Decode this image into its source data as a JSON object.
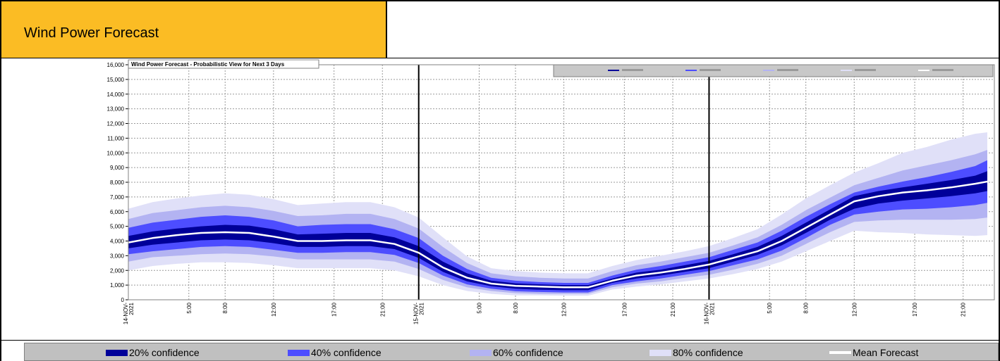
{
  "header": {
    "title": "Wind Power Forecast"
  },
  "legend": {
    "items": [
      {
        "label": "20% confidence",
        "color": "#000099"
      },
      {
        "label": "40% confidence",
        "color": "#4d4dff"
      },
      {
        "label": "60% confidence",
        "color": "#b3b3f2"
      },
      {
        "label": "80% confidence",
        "color": "#e0e0f8"
      },
      {
        "label": "Mean Forecast",
        "color": "#ffffff"
      }
    ]
  },
  "chart_data": {
    "type": "area",
    "title": "Wind Power Forecast - Probabilistic View for Next 3 Days",
    "xlabel": "",
    "ylabel": "",
    "ylim": [
      0,
      16000
    ],
    "yticks": [
      0,
      1000,
      2000,
      3000,
      4000,
      5000,
      6000,
      7000,
      8000,
      9000,
      10000,
      11000,
      12000,
      13000,
      14000,
      15000,
      16000
    ],
    "ytick_labels": [
      "0",
      "1,000",
      "2,000",
      "3,000",
      "4,000",
      "5,000",
      "6,000",
      "7,000",
      "8,000",
      "9,000",
      "10,000",
      "11,000",
      "12,000",
      "13,000",
      "14,000",
      "15,000",
      "16,000"
    ],
    "xlim": [
      0,
      71
    ],
    "xticks": [
      {
        "h": 0,
        "label": "14-NOV-2021",
        "day": true
      },
      {
        "h": 5,
        "label": "5:00"
      },
      {
        "h": 8,
        "label": "8:00"
      },
      {
        "h": 12,
        "label": "12:00"
      },
      {
        "h": 17,
        "label": "17:00"
      },
      {
        "h": 21,
        "label": "21:00"
      },
      {
        "h": 24,
        "label": "15-NOV-2021",
        "day": true
      },
      {
        "h": 29,
        "label": "5:00"
      },
      {
        "h": 32,
        "label": "8:00"
      },
      {
        "h": 36,
        "label": "12:00"
      },
      {
        "h": 41,
        "label": "17:00"
      },
      {
        "h": 45,
        "label": "21:00"
      },
      {
        "h": 48,
        "label": "16-NOV-2021",
        "day": true
      },
      {
        "h": 53,
        "label": "5:00"
      },
      {
        "h": 56,
        "label": "8:00"
      },
      {
        "h": 60,
        "label": "12:00"
      },
      {
        "h": 65,
        "label": "17:00"
      },
      {
        "h": 69,
        "label": "21:00"
      }
    ],
    "grid": true,
    "legend_position": "bottom",
    "x": [
      0,
      2,
      4,
      6,
      8,
      10,
      12,
      14,
      16,
      18,
      20,
      22,
      24,
      26,
      28,
      30,
      32,
      34,
      36,
      38,
      40,
      42,
      44,
      46,
      48,
      50,
      52,
      54,
      56,
      58,
      60,
      62,
      64,
      66,
      68,
      70,
      71
    ],
    "series": [
      {
        "name": "Mean Forecast",
        "values": [
          3900,
          4200,
          4400,
          4550,
          4600,
          4550,
          4300,
          4000,
          4000,
          4050,
          4050,
          3800,
          3200,
          2200,
          1500,
          1100,
          950,
          900,
          850,
          850,
          1300,
          1650,
          1850,
          2100,
          2400,
          2850,
          3300,
          4000,
          4900,
          5800,
          6700,
          7050,
          7300,
          7450,
          7650,
          7900,
          8050
        ]
      }
    ],
    "bands": [
      {
        "name": "80% confidence",
        "lower": [
          2000,
          2300,
          2450,
          2550,
          2550,
          2500,
          2350,
          2150,
          2150,
          2150,
          2150,
          2000,
          1600,
          1000,
          600,
          400,
          300,
          300,
          280,
          280,
          700,
          900,
          1050,
          1250,
          1450,
          1750,
          2100,
          2600,
          3300,
          4000,
          4700,
          4600,
          4550,
          4450,
          4400,
          4350,
          4400
        ],
        "upper": [
          6200,
          6650,
          6900,
          7100,
          7250,
          7150,
          6850,
          6450,
          6550,
          6650,
          6650,
          6300,
          5600,
          4250,
          2950,
          2150,
          1950,
          1850,
          1800,
          1800,
          2300,
          2700,
          3000,
          3300,
          3650,
          4200,
          4800,
          5800,
          6900,
          7800,
          8650,
          9300,
          10000,
          10400,
          10900,
          11300,
          11400
        ]
      },
      {
        "name": "60% confidence",
        "lower": [
          2600,
          2900,
          3000,
          3100,
          3150,
          3100,
          2950,
          2750,
          2750,
          2750,
          2750,
          2600,
          2100,
          1350,
          850,
          600,
          450,
          400,
          400,
          400,
          850,
          1100,
          1250,
          1500,
          1700,
          2050,
          2450,
          3000,
          3800,
          4600,
          5300,
          5400,
          5450,
          5450,
          5450,
          5500,
          5600
        ],
        "upper": [
          5500,
          5900,
          6100,
          6300,
          6400,
          6300,
          6050,
          5700,
          5750,
          5850,
          5850,
          5500,
          4850,
          3600,
          2500,
          1800,
          1600,
          1500,
          1450,
          1450,
          1950,
          2350,
          2600,
          2900,
          3200,
          3700,
          4250,
          5100,
          6100,
          6950,
          7800,
          8300,
          8800,
          9150,
          9500,
          9900,
          10200
        ]
      },
      {
        "name": "40% confidence",
        "lower": [
          3100,
          3300,
          3450,
          3600,
          3650,
          3600,
          3400,
          3200,
          3200,
          3250,
          3250,
          3050,
          2500,
          1650,
          1050,
          750,
          580,
          530,
          500,
          500,
          1000,
          1250,
          1450,
          1700,
          1950,
          2350,
          2750,
          3350,
          4200,
          5100,
          5800,
          6000,
          6150,
          6200,
          6300,
          6450,
          6600
        ],
        "upper": [
          4900,
          5250,
          5450,
          5650,
          5750,
          5650,
          5400,
          5000,
          5100,
          5150,
          5150,
          4800,
          4200,
          3000,
          2100,
          1500,
          1300,
          1200,
          1150,
          1150,
          1650,
          2050,
          2300,
          2600,
          2900,
          3400,
          3900,
          4700,
          5650,
          6500,
          7300,
          7700,
          8050,
          8350,
          8700,
          9100,
          9500
        ]
      },
      {
        "name": "20% confidence",
        "lower": [
          3500,
          3750,
          3900,
          4050,
          4100,
          4050,
          3850,
          3600,
          3600,
          3650,
          3650,
          3450,
          2850,
          1900,
          1250,
          920,
          750,
          680,
          650,
          650,
          1150,
          1450,
          1650,
          1900,
          2150,
          2600,
          3050,
          3700,
          4550,
          5450,
          6200,
          6550,
          6750,
          6900,
          7050,
          7250,
          7400
        ],
        "upper": [
          4350,
          4650,
          4850,
          5000,
          5100,
          5050,
          4800,
          4450,
          4500,
          4550,
          4550,
          4250,
          3650,
          2600,
          1800,
          1300,
          1120,
          1050,
          1000,
          1000,
          1450,
          1850,
          2050,
          2350,
          2650,
          3100,
          3600,
          4350,
          5250,
          6150,
          7050,
          7400,
          7650,
          7900,
          8150,
          8450,
          8750
        ]
      }
    ],
    "band_colors": {
      "20% confidence": "#000099",
      "40% confidence": "#4d4dff",
      "60% confidence": "#b3b3f2",
      "80% confidence": "#e0e0f8"
    },
    "mean_color": "#ffffff"
  }
}
